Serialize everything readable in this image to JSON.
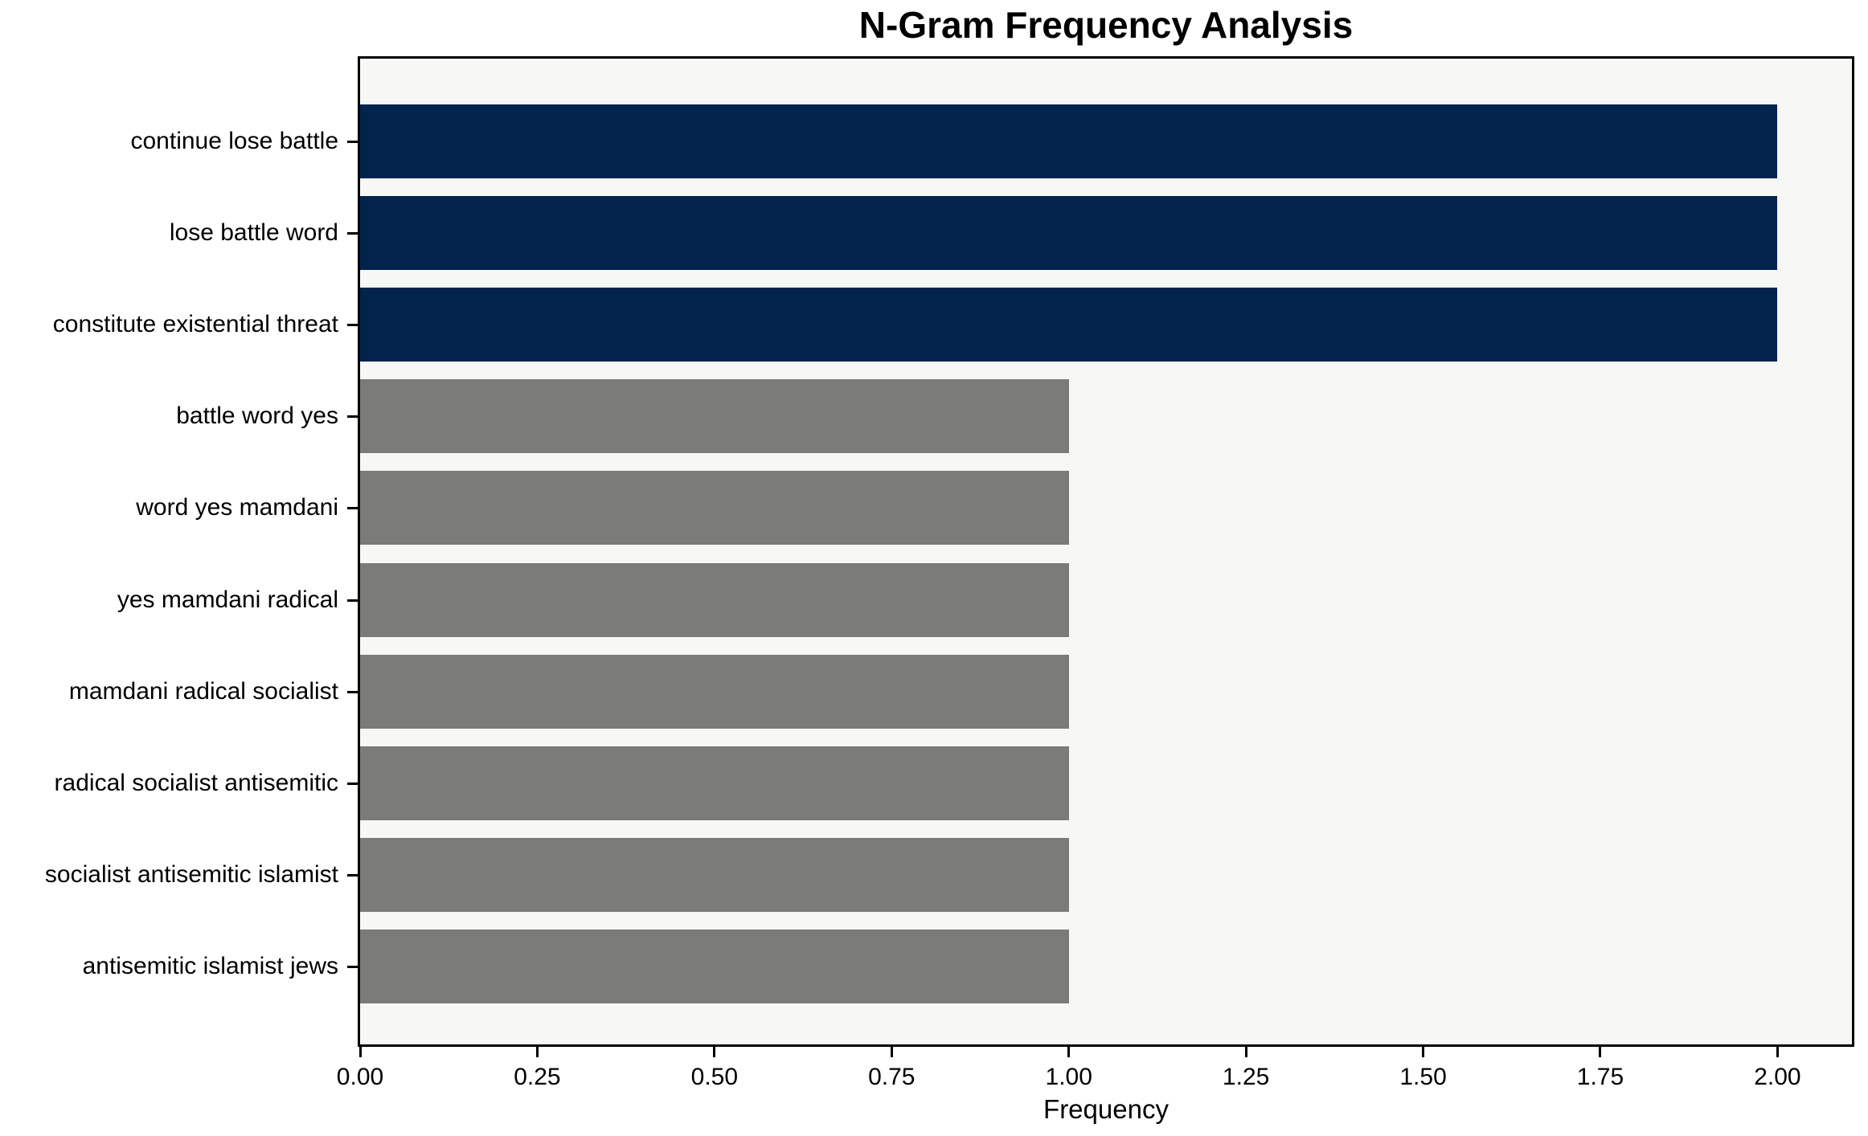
{
  "chart_data": {
    "type": "bar",
    "orientation": "horizontal",
    "title": "N-Gram Frequency Analysis",
    "xlabel": "Frequency",
    "ylabel": "",
    "categories": [
      "continue lose battle",
      "lose battle word",
      "constitute existential threat",
      "battle word yes",
      "word yes mamdani",
      "yes mamdani radical",
      "mamdani radical socialist",
      "radical socialist antisemitic",
      "socialist antisemitic islamist",
      "antisemitic islamist jews"
    ],
    "values": [
      2,
      2,
      2,
      1,
      1,
      1,
      1,
      1,
      1,
      1
    ],
    "bar_colors": [
      "#02234C",
      "#02234C",
      "#02234C",
      "#7B7B78",
      "#7B7B78",
      "#7B7B78",
      "#7B7B78",
      "#7B7B78",
      "#7B7B78",
      "#7B7B78"
    ],
    "xlim": [
      0,
      2.105
    ],
    "xtick_values": [
      0,
      0.25,
      0.5,
      0.75,
      1.0,
      1.25,
      1.5,
      1.75,
      2.0
    ],
    "xtick_labels": [
      "0.00",
      "0.25",
      "0.50",
      "0.75",
      "1.00",
      "1.25",
      "1.50",
      "1.75",
      "2.00"
    ],
    "grid": false,
    "legend": false,
    "colors": {
      "highlight": "#02234C",
      "normal": "#7B7B78",
      "plot_background": "#F7F7F6",
      "figure_background": "#FFFFFF",
      "spine": "#000000",
      "text": "#000000"
    }
  }
}
